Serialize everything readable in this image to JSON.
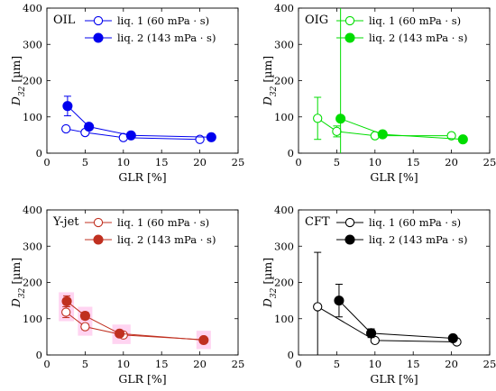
{
  "chart_data": [
    {
      "type": "scatter",
      "panel_label": "OIL",
      "color": "#0000ee",
      "xlabel": "GLR [%]",
      "ylabel_main": "D",
      "ylabel_sub": "32",
      "ylabel_unit": " [µm]",
      "xlim": [
        0,
        25
      ],
      "ylim": [
        0,
        400
      ],
      "xticks": [
        "0",
        "5",
        "10",
        "15",
        "20",
        "25"
      ],
      "yticks": [
        "0",
        "100",
        "200",
        "300",
        "400"
      ],
      "legend_position": "top-right",
      "series": [
        {
          "name": "liq. 1 (60 mPa · s)",
          "marker": "open-circle",
          "points": [
            {
              "x": 2.5,
              "y": 67,
              "err": null
            },
            {
              "x": 5,
              "y": 57,
              "err": null
            },
            {
              "x": 10,
              "y": 43,
              "err": null
            },
            {
              "x": 20,
              "y": 38,
              "err": null
            }
          ]
        },
        {
          "name": "liq. 2 (143 mPa · s)",
          "marker": "filled-circle",
          "points": [
            {
              "x": 2.7,
              "y": 130,
              "err": 27
            },
            {
              "x": 5.5,
              "y": 73,
              "err": null
            },
            {
              "x": 11,
              "y": 49,
              "err": null
            },
            {
              "x": 21.5,
              "y": 44,
              "err": null
            }
          ]
        }
      ]
    },
    {
      "type": "scatter",
      "panel_label": "OIG",
      "color": "#00dd00",
      "xlabel": "GLR [%]",
      "ylabel_main": "D",
      "ylabel_sub": "32",
      "ylabel_unit": " [µm]",
      "xlim": [
        0,
        25
      ],
      "ylim": [
        0,
        400
      ],
      "xticks": [
        "0",
        "5",
        "10",
        "15",
        "20",
        "25"
      ],
      "yticks": [
        "0",
        "100",
        "200",
        "300",
        "400"
      ],
      "legend_position": "top-right",
      "series": [
        {
          "name": "liq. 1 (60 mPa · s)",
          "marker": "open-circle",
          "points": [
            {
              "x": 2.5,
              "y": 96,
              "err": 58
            },
            {
              "x": 5,
              "y": 60,
              "err": 15
            },
            {
              "x": 10,
              "y": 48,
              "err": null
            },
            {
              "x": 20,
              "y": 48,
              "err": null
            }
          ]
        },
        {
          "name": "liq. 2 (143 mPa · s)",
          "marker": "filled-circle",
          "points": [
            {
              "x": 5.5,
              "y": 95,
              "err": 400
            },
            {
              "x": 11,
              "y": 52,
              "err": null
            },
            {
              "x": 21.5,
              "y": 38,
              "err": null
            }
          ]
        }
      ]
    },
    {
      "type": "scatter",
      "panel_label": "Y-jet",
      "color": "#c03020",
      "shade_color": "#ff66cc",
      "xlabel": "GLR [%]",
      "ylabel_main": "D",
      "ylabel_sub": "32",
      "ylabel_unit": " [µm]",
      "xlim": [
        0,
        25
      ],
      "ylim": [
        0,
        400
      ],
      "xticks": [
        "0",
        "5",
        "10",
        "15",
        "20",
        "25"
      ],
      "yticks": [
        "0",
        "100",
        "200",
        "300",
        "400"
      ],
      "legend_position": "top-right",
      "series": [
        {
          "name": "liq. 1 (60 mPa · s)",
          "marker": "open-circle",
          "points": [
            {
              "x": 2.5,
              "y": 118,
              "err": 15
            },
            {
              "x": 5,
              "y": 78,
              "err": 8
            },
            {
              "x": 10,
              "y": 55,
              "err": null
            },
            {
              "x": 20.5,
              "y": 42,
              "err": null
            }
          ]
        },
        {
          "name": "liq. 2 (143 mPa · s)",
          "marker": "filled-circle",
          "points": [
            {
              "x": 2.6,
              "y": 148,
              "err": 15
            },
            {
              "x": 5,
              "y": 108,
              "err": 10
            },
            {
              "x": 9.5,
              "y": 59,
              "err": null
            },
            {
              "x": 20.5,
              "y": 41,
              "err": null
            }
          ]
        }
      ]
    },
    {
      "type": "scatter",
      "panel_label": "CFT",
      "color": "#000000",
      "xlabel": "GLR [%]",
      "ylabel_main": "D",
      "ylabel_sub": "32",
      "ylabel_unit": " [µm]",
      "xlim": [
        0,
        25
      ],
      "ylim": [
        0,
        400
      ],
      "xticks": [
        "0",
        "5",
        "10",
        "15",
        "20",
        "25"
      ],
      "yticks": [
        "0",
        "100",
        "200",
        "300",
        "400"
      ],
      "legend_position": "top-right",
      "series": [
        {
          "name": "liq. 1 (60 mPa · s)",
          "marker": "open-circle",
          "points": [
            {
              "x": 2.5,
              "y": 133,
              "err": 150
            },
            {
              "x": 10,
              "y": 40,
              "err": null
            },
            {
              "x": 20.7,
              "y": 36,
              "err": null
            }
          ]
        },
        {
          "name": "liq. 2 (143 mPa · s)",
          "marker": "filled-circle",
          "points": [
            {
              "x": 5.3,
              "y": 150,
              "err": 45
            },
            {
              "x": 9.5,
              "y": 60,
              "err": 12
            },
            {
              "x": 20.2,
              "y": 46,
              "err": null
            }
          ]
        }
      ]
    }
  ]
}
